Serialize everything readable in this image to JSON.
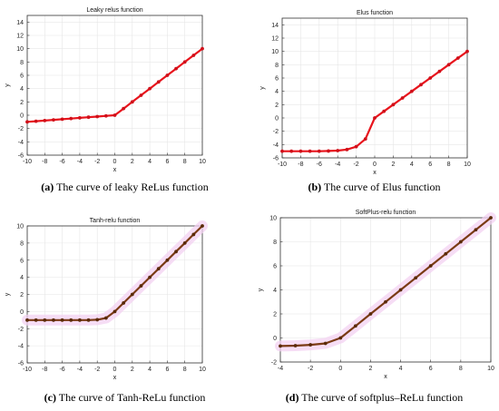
{
  "captions": [
    {
      "label": "(a)",
      "text": "The curve of leaky ReLus function"
    },
    {
      "label": "(b)",
      "text": "The curve of Elus function"
    },
    {
      "label": "(c)",
      "text": "The curve of Tanh-ReLu function"
    },
    {
      "label": "(d)",
      "text": "The curve of softplus–ReLu function"
    }
  ],
  "colors": {
    "line_red": "#e8141c",
    "line_brown": "#7a3a14",
    "marker_red": "#d0101a",
    "marker_brown": "#5a2a08",
    "halo": "#f3d2f1",
    "grid": "#e6e6e6",
    "axes": "#333333"
  },
  "chart_data": [
    {
      "type": "line",
      "title": "Leaky relus function",
      "xlabel": "x",
      "ylabel": "y",
      "xlim": [
        -10,
        10
      ],
      "ylim": [
        -6,
        15
      ],
      "xticks": [
        -10,
        -8,
        -6,
        -4,
        -2,
        0,
        2,
        4,
        6,
        8,
        10
      ],
      "yticks": [
        -6,
        -4,
        -2,
        0,
        2,
        4,
        6,
        8,
        10,
        12,
        14
      ],
      "grid": true,
      "series": [
        {
          "x": [
            -10,
            -9,
            -8,
            -7,
            -6,
            -5,
            -4,
            -3,
            -2,
            -1,
            0,
            1,
            2,
            3,
            4,
            5,
            6,
            7,
            8,
            9,
            10
          ],
          "y": [
            -1.0,
            -0.9,
            -0.8,
            -0.7,
            -0.6,
            -0.5,
            -0.4,
            -0.3,
            -0.2,
            -0.1,
            0,
            1,
            2,
            3,
            4,
            5,
            6,
            7,
            8,
            9,
            10
          ]
        }
      ]
    },
    {
      "type": "line",
      "title": "Elus function",
      "xlabel": "x",
      "ylabel": "y",
      "xlim": [
        -10,
        10
      ],
      "ylim": [
        -6,
        15
      ],
      "xticks": [
        -10,
        -8,
        -6,
        -4,
        -2,
        0,
        2,
        4,
        6,
        8,
        10
      ],
      "yticks": [
        -6,
        -4,
        -2,
        0,
        2,
        4,
        6,
        8,
        10,
        12,
        14
      ],
      "grid": true,
      "series": [
        {
          "x": [
            -10,
            -9,
            -8,
            -7,
            -6,
            -5,
            -4,
            -3,
            -2,
            -1,
            0,
            1,
            2,
            3,
            4,
            5,
            6,
            7,
            8,
            9,
            10
          ],
          "y": [
            -5.0,
            -5.0,
            -5.0,
            -5.0,
            -5.0,
            -4.97,
            -4.91,
            -4.75,
            -4.32,
            -3.16,
            0,
            1,
            2,
            3,
            4,
            5,
            6,
            7,
            8,
            9,
            10
          ]
        }
      ]
    },
    {
      "type": "line",
      "title": "Tanh-relu function",
      "xlabel": "x",
      "ylabel": "y",
      "xlim": [
        -10,
        10
      ],
      "ylim": [
        -6,
        10
      ],
      "xticks": [
        -10,
        -8,
        -6,
        -4,
        -2,
        0,
        2,
        4,
        6,
        8,
        10
      ],
      "yticks": [
        -6,
        -4,
        -2,
        0,
        2,
        4,
        6,
        8,
        10
      ],
      "grid": true,
      "series": [
        {
          "x": [
            -10,
            -9,
            -8,
            -7,
            -6,
            -5,
            -4,
            -3,
            -2,
            -1,
            0,
            1,
            2,
            3,
            4,
            5,
            6,
            7,
            8,
            9,
            10
          ],
          "y": [
            -1.0,
            -1.0,
            -1.0,
            -1.0,
            -1.0,
            -1.0,
            -1.0,
            -1.0,
            -0.96,
            -0.76,
            0,
            1,
            2,
            3,
            4,
            5,
            6,
            7,
            8,
            9,
            10
          ]
        }
      ]
    },
    {
      "type": "line",
      "title": "SoftPlus-relu function",
      "xlabel": "x",
      "ylabel": "y",
      "xlim": [
        -4,
        10
      ],
      "ylim": [
        -2,
        10
      ],
      "xticks": [
        -4,
        -2,
        0,
        2,
        4,
        6,
        8,
        10
      ],
      "yticks": [
        -2,
        0,
        2,
        4,
        6,
        8,
        10
      ],
      "grid": true,
      "series": [
        {
          "x": [
            -4,
            -3,
            -2,
            -1,
            0,
            1,
            2,
            3,
            4,
            5,
            6,
            7,
            8,
            9,
            10
          ],
          "y": [
            -0.67,
            -0.64,
            -0.57,
            -0.45,
            0,
            1,
            2,
            3,
            4,
            5,
            6,
            7,
            8,
            9,
            10
          ]
        }
      ]
    }
  ]
}
